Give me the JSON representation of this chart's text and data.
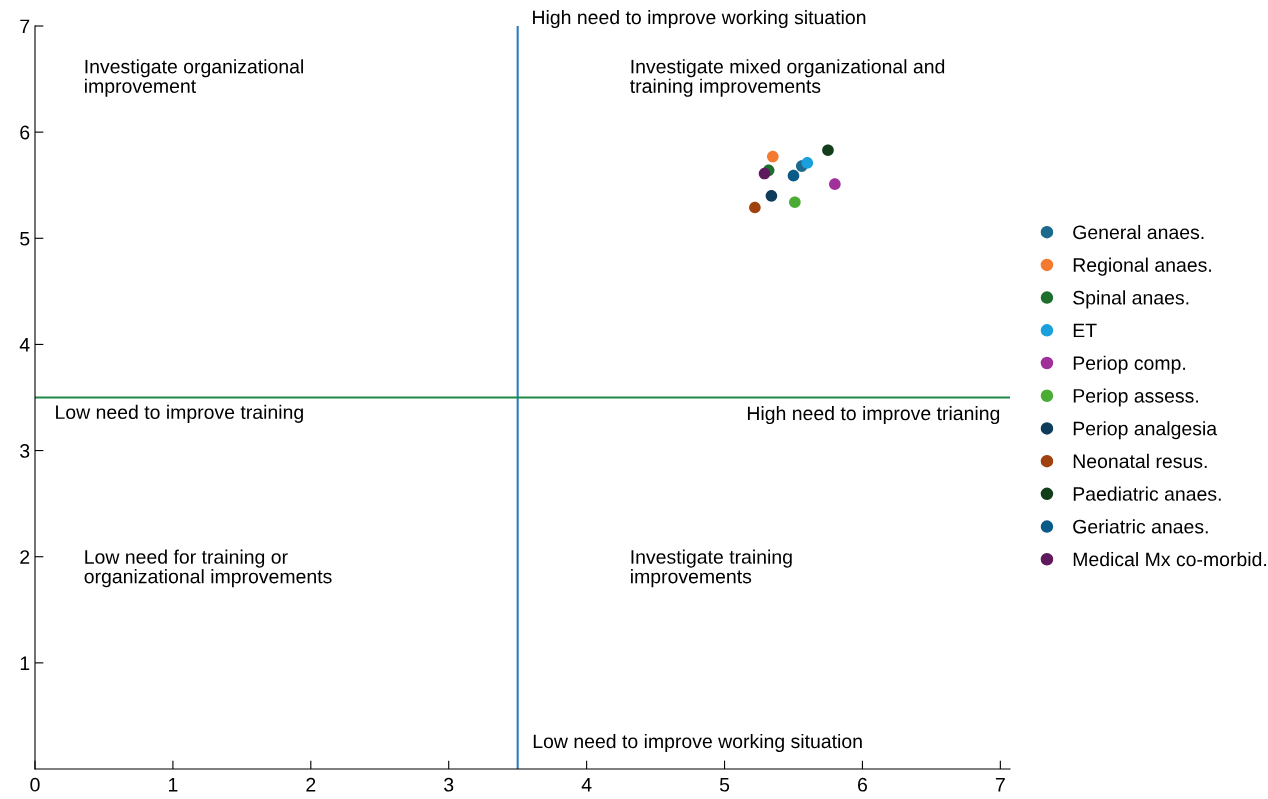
{
  "chart_data": {
    "type": "scatter",
    "marker": "circle",
    "grid": false,
    "legend": "right",
    "xlim": [
      0,
      7.07
    ],
    "ylim": [
      0,
      7
    ],
    "xticks": [
      0,
      1,
      2,
      3,
      4,
      5,
      6,
      7
    ],
    "yticks": [
      1,
      2,
      3,
      4,
      5,
      6,
      7
    ],
    "series": [
      {
        "name": "General anaes.",
        "color": "#1c6a8c",
        "x": [
          5.56
        ],
        "values": [
          5.68
        ]
      },
      {
        "name": "Regional anaes.",
        "color": "#f47a30",
        "x": [
          5.35
        ],
        "values": [
          5.77
        ]
      },
      {
        "name": "Spinal anaes.",
        "color": "#1e6e2e",
        "x": [
          5.32
        ],
        "values": [
          5.64
        ]
      },
      {
        "name": "ET",
        "color": "#1aa0dc",
        "x": [
          5.6
        ],
        "values": [
          5.71
        ]
      },
      {
        "name": "Periop comp.",
        "color": "#a0309a",
        "x": [
          5.8
        ],
        "values": [
          5.51
        ]
      },
      {
        "name": "Periop assess.",
        "color": "#4aac34",
        "x": [
          5.51
        ],
        "values": [
          5.34
        ]
      },
      {
        "name": "Periop analgesia",
        "color": "#0e3c5a",
        "x": [
          5.34
        ],
        "values": [
          5.4
        ]
      },
      {
        "name": "Neonatal resus.",
        "color": "#a0420e",
        "x": [
          5.22
        ],
        "values": [
          5.29
        ]
      },
      {
        "name": "Paediatric anaes.",
        "color": "#123f1a",
        "x": [
          5.75
        ],
        "values": [
          5.83
        ]
      },
      {
        "name": "Geriatric anaes.",
        "color": "#0a5a88",
        "x": [
          5.5
        ],
        "values": [
          5.59
        ]
      },
      {
        "name": "Medical Mx co-morbid.",
        "color": "#5e1a5c",
        "x": [
          5.29
        ],
        "values": [
          5.61
        ]
      }
    ],
    "ref_lines": [
      {
        "axis": "x",
        "value": 3.5,
        "color": "#2b7bbf",
        "line_style": "solid",
        "label": "High need to improve working situation"
      },
      {
        "axis": "y",
        "value": 3.5,
        "color": "#1e8a4a",
        "line_style": "solid",
        "label": "High need to improve trianing"
      }
    ],
    "annotations": [
      "Low need to improve working situation",
      "Low need to improve training",
      "Investigate organizational\nimprovement",
      "Investigate mixed organizational and\ntraining improvements",
      "Low need for training or\norganizational improvements",
      "Investigate training\nimprovements"
    ]
  }
}
